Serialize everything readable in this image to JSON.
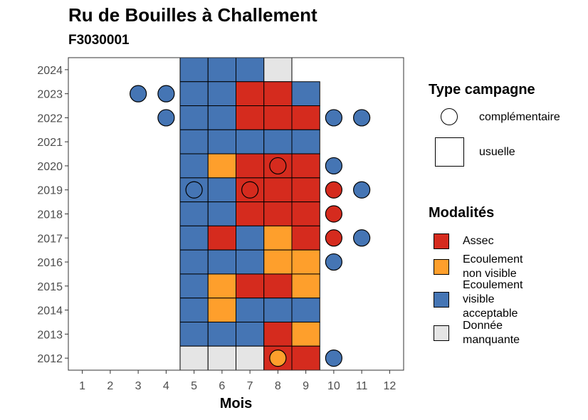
{
  "chart_data": {
    "type": "heatmap",
    "title": "Ru de Bouilles à Challement",
    "subtitle": "F3030001",
    "xlabel": "Mois",
    "ylabel": "",
    "x_ticks": [
      1,
      2,
      3,
      4,
      5,
      6,
      7,
      8,
      9,
      10,
      11,
      12
    ],
    "y_ticks": [
      2012,
      2013,
      2014,
      2015,
      2016,
      2017,
      2018,
      2019,
      2020,
      2021,
      2022,
      2023,
      2024
    ],
    "xlim": [
      0.5,
      12.5
    ],
    "ylim": [
      2011.5,
      2024.5
    ],
    "grid": false,
    "colors": {
      "Assec": "#d52b1e",
      "Ecoulement non visible": "#fe9f2c",
      "Ecoulement visible acceptable": "#4575b4",
      "Donnée manquante": "#e5e5e5"
    },
    "usuelle": [
      {
        "year": 2024,
        "cells": {
          "5": "Ecoulement visible acceptable",
          "6": "Ecoulement visible acceptable",
          "7": "Ecoulement visible acceptable",
          "8": "Donnée manquante"
        }
      },
      {
        "year": 2023,
        "cells": {
          "5": "Ecoulement visible acceptable",
          "6": "Ecoulement visible acceptable",
          "7": "Assec",
          "8": "Assec",
          "9": "Ecoulement visible acceptable"
        }
      },
      {
        "year": 2022,
        "cells": {
          "5": "Ecoulement visible acceptable",
          "6": "Ecoulement visible acceptable",
          "7": "Assec",
          "8": "Assec",
          "9": "Assec"
        }
      },
      {
        "year": 2021,
        "cells": {
          "5": "Ecoulement visible acceptable",
          "6": "Ecoulement visible acceptable",
          "7": "Ecoulement visible acceptable",
          "8": "Ecoulement visible acceptable",
          "9": "Ecoulement visible acceptable"
        }
      },
      {
        "year": 2020,
        "cells": {
          "5": "Ecoulement visible acceptable",
          "6": "Ecoulement non visible",
          "7": "Assec",
          "8": "Assec",
          "9": "Assec"
        }
      },
      {
        "year": 2019,
        "cells": {
          "5": "Ecoulement visible acceptable",
          "6": "Ecoulement visible acceptable",
          "7": "Assec",
          "8": "Assec",
          "9": "Assec"
        }
      },
      {
        "year": 2018,
        "cells": {
          "5": "Ecoulement visible acceptable",
          "6": "Ecoulement visible acceptable",
          "7": "Assec",
          "8": "Assec",
          "9": "Assec"
        }
      },
      {
        "year": 2017,
        "cells": {
          "5": "Ecoulement visible acceptable",
          "6": "Assec",
          "7": "Ecoulement visible acceptable",
          "8": "Ecoulement non visible",
          "9": "Assec"
        }
      },
      {
        "year": 2016,
        "cells": {
          "5": "Ecoulement visible acceptable",
          "6": "Ecoulement visible acceptable",
          "7": "Ecoulement visible acceptable",
          "8": "Ecoulement non visible",
          "9": "Ecoulement non visible"
        }
      },
      {
        "year": 2015,
        "cells": {
          "5": "Ecoulement visible acceptable",
          "6": "Ecoulement non visible",
          "7": "Assec",
          "8": "Assec",
          "9": "Ecoulement non visible"
        }
      },
      {
        "year": 2014,
        "cells": {
          "5": "Ecoulement visible acceptable",
          "6": "Ecoulement non visible",
          "7": "Ecoulement visible acceptable",
          "8": "Ecoulement visible acceptable",
          "9": "Ecoulement visible acceptable"
        }
      },
      {
        "year": 2013,
        "cells": {
          "5": "Ecoulement visible acceptable",
          "6": "Ecoulement visible acceptable",
          "7": "Ecoulement visible acceptable",
          "8": "Assec",
          "9": "Ecoulement non visible"
        }
      },
      {
        "year": 2012,
        "cells": {
          "5": "Donnée manquante",
          "6": "Donnée manquante",
          "7": "Donnée manquante",
          "8": "Assec",
          "9": "Assec"
        }
      }
    ],
    "complementaire": [
      {
        "year": 2023,
        "month": 3,
        "modalite": "Ecoulement visible acceptable"
      },
      {
        "year": 2023,
        "month": 4,
        "modalite": "Ecoulement visible acceptable"
      },
      {
        "year": 2022,
        "month": 4,
        "modalite": "Ecoulement visible acceptable"
      },
      {
        "year": 2022,
        "month": 10,
        "modalite": "Ecoulement visible acceptable"
      },
      {
        "year": 2022,
        "month": 11,
        "modalite": "Ecoulement visible acceptable"
      },
      {
        "year": 2020,
        "month": 8,
        "modalite": "Assec"
      },
      {
        "year": 2020,
        "month": 10,
        "modalite": "Ecoulement visible acceptable"
      },
      {
        "year": 2019,
        "month": 5,
        "modalite": "Ecoulement visible acceptable"
      },
      {
        "year": 2019,
        "month": 7,
        "modalite": "Assec"
      },
      {
        "year": 2019,
        "month": 10,
        "modalite": "Assec"
      },
      {
        "year": 2019,
        "month": 11,
        "modalite": "Ecoulement visible acceptable"
      },
      {
        "year": 2018,
        "month": 10,
        "modalite": "Assec"
      },
      {
        "year": 2017,
        "month": 10,
        "modalite": "Assec"
      },
      {
        "year": 2017,
        "month": 11,
        "modalite": "Ecoulement visible acceptable"
      },
      {
        "year": 2016,
        "month": 10,
        "modalite": "Ecoulement visible acceptable"
      },
      {
        "year": 2012,
        "month": 8,
        "modalite": "Ecoulement non visible"
      },
      {
        "year": 2012,
        "month": 10,
        "modalite": "Ecoulement visible acceptable"
      }
    ],
    "legend": {
      "type_title": "Type campagne",
      "type_entries": [
        "complémentaire",
        "usuelle"
      ],
      "modalite_title": "Modalités",
      "modalite_entries": [
        {
          "name": "Assec",
          "lines": [
            "Assec"
          ]
        },
        {
          "name": "Ecoulement non visible",
          "lines": [
            "Ecoulement",
            "non visible"
          ]
        },
        {
          "name": "Ecoulement visible acceptable",
          "lines": [
            "Ecoulement",
            "visible",
            "acceptable"
          ]
        },
        {
          "name": "Donnée manquante",
          "lines": [
            "Donnée",
            "manquante"
          ]
        }
      ],
      "placement": "right"
    }
  }
}
